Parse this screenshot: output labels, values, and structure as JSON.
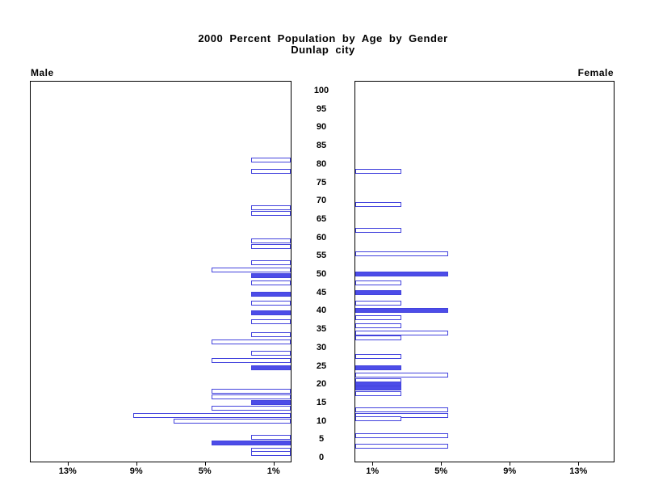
{
  "chart_data": {
    "type": "bar",
    "subtype": "population-pyramid",
    "title": "2000 Percent Population by Age by Gender",
    "subtitle": "Dunlap city",
    "panels": {
      "left": "Male",
      "right": "Female"
    },
    "age_axis": {
      "min": 0,
      "max": 100,
      "tick_step": 5
    },
    "pct_axis": {
      "tick_values": [
        1,
        5,
        9,
        13
      ],
      "tick_labels": [
        "1%",
        "5%",
        "9%",
        "13%"
      ],
      "max_pct": 15.2,
      "unit": "%"
    },
    "legend": "filled bars = solid blue, hollow bars = white with blue outline",
    "colors": {
      "bar_blue": "#4343dd",
      "bar_fill_blue": "#4d4de8",
      "frame": "#000000",
      "background": "#ffffff"
    },
    "male_bars": [
      {
        "age": 81,
        "pct": 2.3,
        "filled": false
      },
      {
        "age": 78,
        "pct": 2.3,
        "filled": false
      },
      {
        "age": 68,
        "pct": 2.3,
        "filled": false
      },
      {
        "age": 66.5,
        "pct": 2.3,
        "filled": false
      },
      {
        "age": 59,
        "pct": 2.3,
        "filled": false
      },
      {
        "age": 57.5,
        "pct": 2.3,
        "filled": false
      },
      {
        "age": 53,
        "pct": 2.3,
        "filled": false
      },
      {
        "age": 51,
        "pct": 4.6,
        "filled": false
      },
      {
        "age": 49.5,
        "pct": 2.3,
        "filled": true
      },
      {
        "age": 47.5,
        "pct": 2.3,
        "filled": false
      },
      {
        "age": 44.5,
        "pct": 2.3,
        "filled": true
      },
      {
        "age": 42,
        "pct": 2.3,
        "filled": false
      },
      {
        "age": 39.5,
        "pct": 2.3,
        "filled": true
      },
      {
        "age": 37,
        "pct": 2.3,
        "filled": false
      },
      {
        "age": 33.5,
        "pct": 2.3,
        "filled": false
      },
      {
        "age": 31.5,
        "pct": 4.6,
        "filled": false
      },
      {
        "age": 28.5,
        "pct": 2.3,
        "filled": false
      },
      {
        "age": 26.5,
        "pct": 4.6,
        "filled": false
      },
      {
        "age": 24.5,
        "pct": 2.3,
        "filled": true
      },
      {
        "age": 18,
        "pct": 4.6,
        "filled": false
      },
      {
        "age": 16.5,
        "pct": 4.6,
        "filled": false
      },
      {
        "age": 15,
        "pct": 2.3,
        "filled": true
      },
      {
        "age": 13.5,
        "pct": 4.6,
        "filled": false
      },
      {
        "age": 11.5,
        "pct": 9.2,
        "filled": false
      },
      {
        "age": 10,
        "pct": 6.8,
        "filled": false
      },
      {
        "age": 5.5,
        "pct": 2.3,
        "filled": false
      },
      {
        "age": 4,
        "pct": 4.6,
        "filled": true
      },
      {
        "age": 2,
        "pct": 2.3,
        "filled": false
      },
      {
        "age": 1,
        "pct": 2.3,
        "filled": false
      }
    ],
    "female_bars": [
      {
        "age": 78,
        "pct": 2.7,
        "filled": false
      },
      {
        "age": 69,
        "pct": 2.7,
        "filled": false
      },
      {
        "age": 62,
        "pct": 2.7,
        "filled": false
      },
      {
        "age": 55.5,
        "pct": 5.4,
        "filled": false
      },
      {
        "age": 50,
        "pct": 5.4,
        "filled": true
      },
      {
        "age": 47.5,
        "pct": 2.7,
        "filled": false
      },
      {
        "age": 45,
        "pct": 2.7,
        "filled": true
      },
      {
        "age": 42,
        "pct": 2.7,
        "filled": false
      },
      {
        "age": 40,
        "pct": 5.4,
        "filled": true
      },
      {
        "age": 38,
        "pct": 2.7,
        "filled": false
      },
      {
        "age": 36,
        "pct": 2.7,
        "filled": false
      },
      {
        "age": 34,
        "pct": 5.4,
        "filled": false
      },
      {
        "age": 32.5,
        "pct": 2.7,
        "filled": false
      },
      {
        "age": 27.5,
        "pct": 2.7,
        "filled": false
      },
      {
        "age": 24.5,
        "pct": 2.7,
        "filled": true
      },
      {
        "age": 22.5,
        "pct": 5.4,
        "filled": false
      },
      {
        "age": 21,
        "pct": 2.7,
        "filled": false
      },
      {
        "age": 20,
        "pct": 2.7,
        "filled": true
      },
      {
        "age": 19,
        "pct": 2.7,
        "filled": true
      },
      {
        "age": 17.5,
        "pct": 2.7,
        "filled": false
      },
      {
        "age": 13,
        "pct": 5.4,
        "filled": false
      },
      {
        "age": 11.5,
        "pct": 5.4,
        "filled": false
      },
      {
        "age": 10.5,
        "pct": 2.7,
        "filled": false
      },
      {
        "age": 6,
        "pct": 5.4,
        "filled": false
      },
      {
        "age": 3,
        "pct": 5.4,
        "filled": false
      }
    ]
  }
}
